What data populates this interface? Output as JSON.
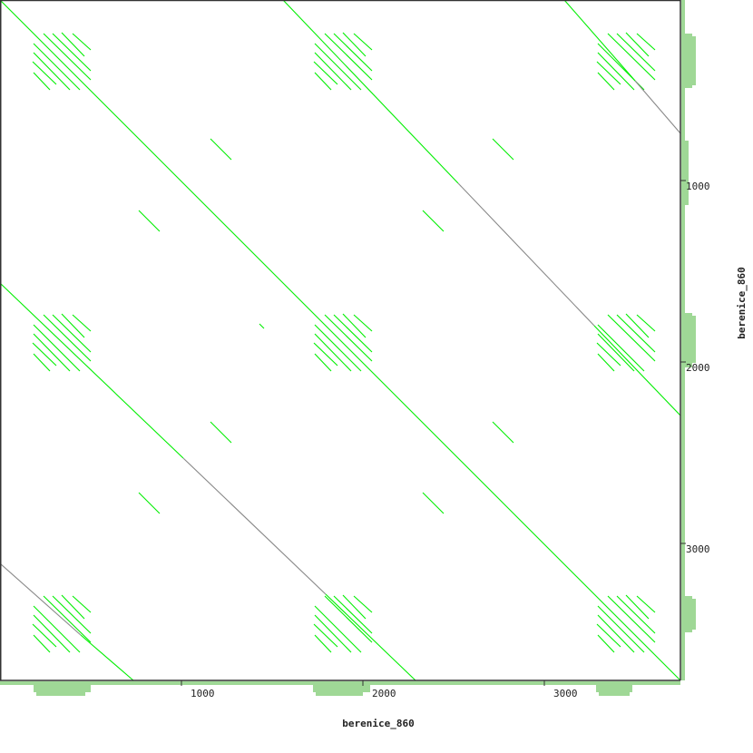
{
  "chart_data": {
    "type": "dotplot",
    "xlabel": "berenice_860",
    "ylabel": "berenice_860",
    "xlim": [
      0,
      3750
    ],
    "ylim": [
      0,
      3750
    ],
    "y_inverted": true,
    "grid": false,
    "x_ticks": [
      {
        "value": 1000,
        "label": "1000"
      },
      {
        "value": 2000,
        "label": "2000"
      },
      {
        "value": 3000,
        "label": "3000"
      }
    ],
    "y_ticks": [
      {
        "value": 1000,
        "label": "1000"
      },
      {
        "value": 2000,
        "label": "2000"
      },
      {
        "value": 3000,
        "label": "3000"
      }
    ],
    "colors": {
      "match": "#00ee00",
      "weak_match": "#888888",
      "coverage": "#9fd896",
      "axis": "#333333"
    },
    "segments": [
      {
        "x1": 0,
        "y1": 0,
        "x2": 3750,
        "y2": 3750,
        "c": "match"
      },
      {
        "x1": 1560,
        "y1": 0,
        "x2": 2525,
        "y2": 1010,
        "c": "match"
      },
      {
        "x1": 2525,
        "y1": 1010,
        "x2": 3275,
        "y2": 1795,
        "c": "weak_match"
      },
      {
        "x1": 3275,
        "y1": 1795,
        "x2": 3750,
        "y2": 2290,
        "c": "match"
      },
      {
        "x1": 0,
        "y1": 1560,
        "x2": 1010,
        "y2": 2525,
        "c": "match"
      },
      {
        "x1": 1010,
        "y1": 2525,
        "x2": 1795,
        "y2": 3275,
        "c": "weak_match"
      },
      {
        "x1": 1795,
        "y1": 3275,
        "x2": 2290,
        "y2": 3750,
        "c": "match"
      },
      {
        "x1": 3110,
        "y1": 0,
        "x2": 3500,
        "y2": 445,
        "c": "match"
      },
      {
        "x1": 3500,
        "y1": 445,
        "x2": 3750,
        "y2": 735,
        "c": "weak_match"
      },
      {
        "x1": 0,
        "y1": 3105,
        "x2": 445,
        "y2": 3500,
        "c": "weak_match"
      },
      {
        "x1": 445,
        "y1": 3500,
        "x2": 735,
        "y2": 3750,
        "c": "match"
      },
      {
        "x1": 1160,
        "y1": 765,
        "x2": 1275,
        "y2": 880,
        "c": "match"
      },
      {
        "x1": 765,
        "y1": 1160,
        "x2": 880,
        "y2": 1275,
        "c": "match"
      },
      {
        "x1": 2715,
        "y1": 765,
        "x2": 2830,
        "y2": 880,
        "c": "match"
      },
      {
        "x1": 2330,
        "y1": 1160,
        "x2": 2445,
        "y2": 1275,
        "c": "match"
      },
      {
        "x1": 1160,
        "y1": 2325,
        "x2": 1275,
        "y2": 2440,
        "c": "match"
      },
      {
        "x1": 765,
        "y1": 2715,
        "x2": 880,
        "y2": 2830,
        "c": "match"
      },
      {
        "x1": 2715,
        "y1": 2325,
        "x2": 2830,
        "y2": 2440,
        "c": "match"
      },
      {
        "x1": 2330,
        "y1": 2715,
        "x2": 2445,
        "y2": 2830,
        "c": "match"
      },
      {
        "x1": 1430,
        "y1": 1785,
        "x2": 1455,
        "y2": 1810,
        "c": "match"
      }
    ],
    "repeat_cluster": {
      "segments": [
        {
          "x1": 240,
          "y1": 185,
          "x2": 500,
          "y2": 440
        },
        {
          "x1": 290,
          "y1": 185,
          "x2": 500,
          "y2": 390
        },
        {
          "x1": 340,
          "y1": 180,
          "x2": 465,
          "y2": 310
        },
        {
          "x1": 400,
          "y1": 185,
          "x2": 500,
          "y2": 275
        },
        {
          "x1": 185,
          "y1": 240,
          "x2": 440,
          "y2": 495
        },
        {
          "x1": 185,
          "y1": 290,
          "x2": 385,
          "y2": 495
        },
        {
          "x1": 180,
          "y1": 340,
          "x2": 310,
          "y2": 465
        },
        {
          "x1": 185,
          "y1": 400,
          "x2": 275,
          "y2": 495
        }
      ],
      "offsets": [
        [
          0,
          0
        ],
        [
          1550,
          0
        ],
        [
          3110,
          0
        ],
        [
          0,
          1550
        ],
        [
          1550,
          1550
        ],
        [
          3110,
          1550
        ],
        [
          0,
          3100
        ],
        [
          1550,
          3100
        ],
        [
          3110,
          3100
        ]
      ]
    },
    "x_coverage": [
      [
        0,
        3750,
        1
      ],
      [
        185,
        500,
        3
      ],
      [
        200,
        470,
        4
      ],
      [
        1725,
        2040,
        3
      ],
      [
        1740,
        2000,
        4
      ],
      [
        3285,
        3485,
        3
      ],
      [
        3300,
        3470,
        4
      ]
    ],
    "y_coverage": [
      [
        0,
        3750,
        1
      ],
      [
        185,
        485,
        3
      ],
      [
        200,
        470,
        4
      ],
      [
        775,
        1130,
        2
      ],
      [
        1725,
        2025,
        3
      ],
      [
        1740,
        2000,
        4
      ],
      [
        3285,
        3485,
        3
      ],
      [
        3300,
        3470,
        4
      ]
    ]
  }
}
